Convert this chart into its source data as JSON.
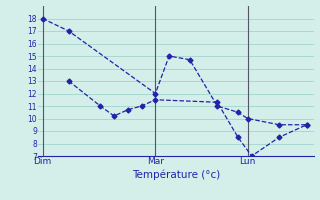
{
  "xlabel": "Température (°c)",
  "background_color": "#d4eeea",
  "grid_color": "#a8d8d0",
  "line_color": "#2222aa",
  "vline_color": "#555566",
  "ylim": [
    7,
    19
  ],
  "yticks": [
    7,
    8,
    9,
    10,
    11,
    12,
    13,
    14,
    15,
    16,
    17,
    18
  ],
  "xlim": [
    0,
    20
  ],
  "day_labels": [
    "Dim",
    "Mar",
    "Lun"
  ],
  "day_positions": [
    0.3,
    8.5,
    15.2
  ],
  "vline_positions": [
    0.3,
    8.5,
    15.2
  ],
  "line1_x": [
    0.3,
    2.2,
    8.5,
    9.5,
    11.0,
    13.0,
    14.5,
    15.2,
    17.5,
    19.5
  ],
  "line1_y": [
    18,
    17,
    12,
    15,
    14.7,
    11,
    10.5,
    10,
    9.5,
    9.5
  ],
  "line2_x": [
    2.2,
    4.5,
    5.5,
    6.5,
    7.5,
    8.5,
    13.0,
    14.5,
    15.5,
    17.5,
    19.5
  ],
  "line2_y": [
    13,
    11,
    10.2,
    10.7,
    11,
    11.5,
    11.3,
    8.5,
    7,
    8.5,
    9.5
  ]
}
